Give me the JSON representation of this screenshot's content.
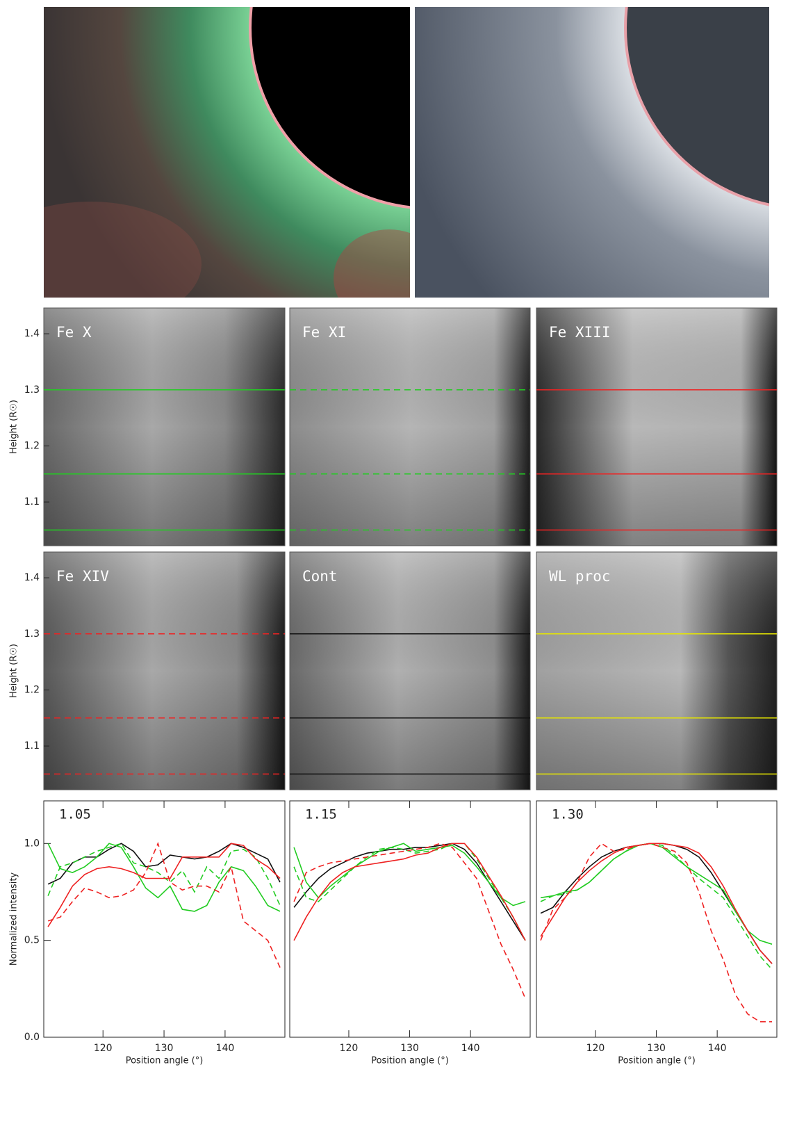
{
  "chart_data": [
    {
      "type": "image",
      "title": "Fe X",
      "ylabel": "Height (R☉)",
      "ylim": [
        1.022,
        1.446
      ],
      "yticks": [
        1.1,
        1.2,
        1.3,
        1.4
      ],
      "lines": [
        1.05,
        1.15,
        1.3
      ],
      "line_color": "#22cc22",
      "line_dash": false
    },
    {
      "type": "image",
      "title": "Fe XI",
      "ylim": [
        1.022,
        1.446
      ],
      "lines": [
        1.05,
        1.15,
        1.3
      ],
      "line_color": "#22cc22",
      "line_dash": true
    },
    {
      "type": "image",
      "title": "Fe XIII",
      "ylim": [
        1.022,
        1.446
      ],
      "lines": [
        1.05,
        1.15,
        1.3
      ],
      "line_color": "#ee2222",
      "line_dash": false
    },
    {
      "type": "image",
      "title": "Fe XIV",
      "ylabel": "Height (R☉)",
      "ylim": [
        1.022,
        1.446
      ],
      "yticks": [
        1.1,
        1.2,
        1.3,
        1.4
      ],
      "lines": [
        1.05,
        1.15,
        1.3
      ],
      "line_color": "#ee2222",
      "line_dash": true
    },
    {
      "type": "image",
      "title": "Cont",
      "ylim": [
        1.022,
        1.446
      ],
      "lines": [
        1.05,
        1.15,
        1.3
      ],
      "line_color": "#111111",
      "line_dash": false
    },
    {
      "type": "image",
      "title": "WL proc",
      "ylim": [
        1.022,
        1.446
      ],
      "lines": [
        1.05,
        1.15,
        1.3
      ],
      "line_color": "#e6e600",
      "line_dash": false
    },
    {
      "type": "line",
      "title": "1.05",
      "ylabel": "Normalized intensity",
      "xlabel": "Position angle (°)",
      "xlim": [
        110.3,
        149.8
      ],
      "xticks": [
        120,
        130,
        140
      ],
      "ylim": [
        0,
        1.22
      ],
      "yticks": [
        {
          "value": 0,
          "label": "0.0"
        },
        0.5,
        {
          "value": 1,
          "label": "1.0"
        }
      ],
      "x": [
        111,
        113,
        115,
        117,
        119,
        121,
        123,
        125,
        127,
        129,
        131,
        133,
        135,
        137,
        139,
        141,
        143,
        145,
        147,
        149
      ],
      "series": [
        {
          "color": "#111111",
          "dash": false,
          "values": [
            0.79,
            0.82,
            0.9,
            0.93,
            0.93,
            0.97,
            1.0,
            0.96,
            0.88,
            0.89,
            0.94,
            0.93,
            0.92,
            0.93,
            0.96,
            1.0,
            0.98,
            0.95,
            0.92,
            0.8
          ]
        },
        {
          "color": "#22cc22",
          "dash": false,
          "values": [
            1.0,
            0.87,
            0.85,
            0.88,
            0.93,
            1.0,
            0.98,
            0.88,
            0.77,
            0.72,
            0.78,
            0.66,
            0.65,
            0.68,
            0.8,
            0.88,
            0.86,
            0.78,
            0.68,
            0.65
          ]
        },
        {
          "color": "#22cc22",
          "dash": true,
          "values": [
            0.73,
            0.88,
            0.9,
            0.93,
            0.96,
            0.98,
            1.0,
            0.9,
            0.88,
            0.85,
            0.8,
            0.86,
            0.75,
            0.88,
            0.82,
            0.96,
            0.97,
            0.93,
            0.82,
            0.68
          ]
        },
        {
          "color": "#ee2222",
          "dash": false,
          "values": [
            0.57,
            0.67,
            0.78,
            0.84,
            0.87,
            0.88,
            0.87,
            0.85,
            0.82,
            0.82,
            0.82,
            0.93,
            0.93,
            0.93,
            0.93,
            1.0,
            0.99,
            0.92,
            0.88,
            0.82
          ]
        },
        {
          "color": "#ee2222",
          "dash": true,
          "values": [
            0.6,
            0.62,
            0.7,
            0.77,
            0.75,
            0.72,
            0.73,
            0.76,
            0.85,
            1.0,
            0.8,
            0.76,
            0.78,
            0.78,
            0.75,
            0.88,
            0.6,
            0.55,
            0.5,
            0.36
          ]
        }
      ]
    },
    {
      "type": "line",
      "title": "1.15",
      "xlabel": "Position angle (°)",
      "xlim": [
        110.3,
        149.8
      ],
      "xticks": [
        120,
        130,
        140
      ],
      "ylim": [
        0,
        1.22
      ],
      "x": [
        111,
        113,
        115,
        117,
        119,
        121,
        123,
        125,
        127,
        129,
        131,
        133,
        135,
        137,
        139,
        141,
        143,
        145,
        147,
        149
      ],
      "series": [
        {
          "color": "#111111",
          "dash": false,
          "values": [
            0.67,
            0.75,
            0.82,
            0.87,
            0.9,
            0.93,
            0.95,
            0.96,
            0.97,
            0.97,
            0.98,
            0.98,
            0.99,
            1.0,
            0.97,
            0.9,
            0.8,
            0.7,
            0.6,
            0.5
          ]
        },
        {
          "color": "#22cc22",
          "dash": false,
          "values": [
            0.98,
            0.8,
            0.72,
            0.78,
            0.83,
            0.88,
            0.92,
            0.96,
            0.98,
            1.0,
            0.96,
            0.97,
            0.98,
            0.99,
            0.95,
            0.88,
            0.8,
            0.72,
            0.68,
            0.7
          ]
        },
        {
          "color": "#22cc22",
          "dash": true,
          "values": [
            0.88,
            0.72,
            0.7,
            0.76,
            0.82,
            0.88,
            0.93,
            0.97,
            0.98,
            0.97,
            0.95,
            0.96,
            0.97,
            1.0,
            1.0,
            0.92,
            0.82,
            0.72,
            0.62,
            0.5
          ]
        },
        {
          "color": "#ee2222",
          "dash": false,
          "values": [
            0.5,
            0.62,
            0.72,
            0.8,
            0.85,
            0.88,
            0.89,
            0.9,
            0.91,
            0.92,
            0.94,
            0.95,
            0.98,
            1.0,
            1.0,
            0.93,
            0.83,
            0.73,
            0.62,
            0.5
          ]
        },
        {
          "color": "#ee2222",
          "dash": true,
          "values": [
            0.7,
            0.85,
            0.88,
            0.9,
            0.91,
            0.92,
            0.93,
            0.94,
            0.95,
            0.96,
            0.97,
            0.98,
            1.0,
            0.98,
            0.9,
            0.82,
            0.65,
            0.48,
            0.35,
            0.2
          ]
        }
      ]
    },
    {
      "type": "line",
      "title": "1.30",
      "xlabel": "Position angle (°)",
      "xlim": [
        110.3,
        149.8
      ],
      "xticks": [
        120,
        130,
        140
      ],
      "ylim": [
        0,
        1.22
      ],
      "x": [
        111,
        113,
        115,
        117,
        119,
        121,
        123,
        125,
        127,
        129,
        131,
        133,
        135,
        137,
        139,
        141,
        143,
        145,
        147,
        149
      ],
      "series": [
        {
          "color": "#111111",
          "dash": false,
          "values": [
            0.64,
            0.67,
            0.75,
            0.82,
            0.88,
            0.93,
            0.96,
            0.98,
            0.99,
            1.0,
            1.0,
            0.99,
            0.97,
            0.93,
            0.85,
            0.75,
            0.65,
            0.55,
            0.45,
            0.38
          ]
        },
        {
          "color": "#22cc22",
          "dash": false,
          "values": [
            0.72,
            0.73,
            0.75,
            0.76,
            0.8,
            0.86,
            0.92,
            0.96,
            0.99,
            1.0,
            0.98,
            0.93,
            0.88,
            0.84,
            0.8,
            0.76,
            0.65,
            0.55,
            0.5,
            0.48
          ]
        },
        {
          "color": "#22cc22",
          "dash": true,
          "values": [
            0.7,
            0.73,
            0.74,
            0.76,
            0.8,
            0.86,
            0.92,
            0.96,
            0.99,
            1.0,
            0.99,
            0.94,
            0.88,
            0.82,
            0.77,
            0.72,
            0.62,
            0.52,
            0.42,
            0.35
          ]
        },
        {
          "color": "#ee2222",
          "dash": false,
          "values": [
            0.52,
            0.62,
            0.72,
            0.8,
            0.86,
            0.91,
            0.95,
            0.98,
            0.99,
            1.0,
            1.0,
            0.99,
            0.98,
            0.95,
            0.88,
            0.78,
            0.66,
            0.55,
            0.45,
            0.38
          ]
        },
        {
          "color": "#ee2222",
          "dash": true,
          "values": [
            0.5,
            0.66,
            0.72,
            0.8,
            0.93,
            1.0,
            0.96,
            0.97,
            0.99,
            1.0,
            0.98,
            0.96,
            0.9,
            0.75,
            0.55,
            0.4,
            0.22,
            0.12,
            0.08,
            0.08
          ]
        }
      ]
    }
  ]
}
